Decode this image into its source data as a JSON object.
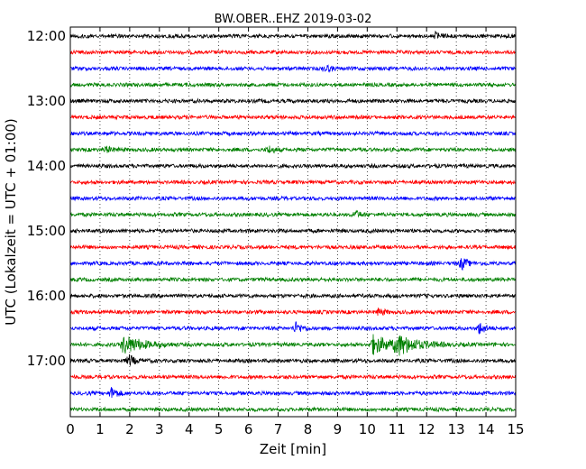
{
  "chart_data": {
    "type": "line",
    "title": "BW.OBER..EHZ 2019-03-02",
    "xlabel": "Zeit  [min]",
    "ylabel": "UTC (Lokalzeit = UTC + 01:00)",
    "xlim": [
      0,
      15
    ],
    "xticks": [
      "0",
      "1",
      "2",
      "3",
      "4",
      "5",
      "6",
      "7",
      "8",
      "9",
      "10",
      "11",
      "12",
      "13",
      "14",
      "15"
    ],
    "ytick_labels": [
      "12:00",
      "13:00",
      "14:00",
      "15:00",
      "16:00",
      "17:00"
    ],
    "grid": {
      "x_dotted": true,
      "y": false
    },
    "color_cycle": [
      "#000000",
      "#ff0000",
      "#0000ff",
      "#008000"
    ],
    "traces": [
      {
        "start": "12:00",
        "color": "#000000"
      },
      {
        "start": "12:15",
        "color": "#ff0000"
      },
      {
        "start": "12:30",
        "color": "#0000ff"
      },
      {
        "start": "12:45",
        "color": "#008000"
      },
      {
        "start": "13:00",
        "color": "#000000"
      },
      {
        "start": "13:15",
        "color": "#ff0000"
      },
      {
        "start": "13:30",
        "color": "#0000ff"
      },
      {
        "start": "13:45",
        "color": "#008000"
      },
      {
        "start": "14:00",
        "color": "#000000"
      },
      {
        "start": "14:15",
        "color": "#ff0000"
      },
      {
        "start": "14:30",
        "color": "#0000ff"
      },
      {
        "start": "14:45",
        "color": "#008000"
      },
      {
        "start": "15:00",
        "color": "#000000"
      },
      {
        "start": "15:15",
        "color": "#ff0000"
      },
      {
        "start": "15:30",
        "color": "#0000ff"
      },
      {
        "start": "15:45",
        "color": "#008000"
      },
      {
        "start": "16:00",
        "color": "#000000"
      },
      {
        "start": "16:15",
        "color": "#ff0000"
      },
      {
        "start": "16:30",
        "color": "#0000ff"
      },
      {
        "start": "16:45",
        "color": "#008000"
      },
      {
        "start": "17:00",
        "color": "#000000"
      },
      {
        "start": "17:15",
        "color": "#ff0000"
      },
      {
        "start": "17:30",
        "color": "#0000ff"
      },
      {
        "start": "17:45",
        "color": "#008000"
      }
    ],
    "events": [
      {
        "trace": "16:45",
        "minute": 1.8,
        "amplitude": "high"
      },
      {
        "trace": "16:45",
        "minute": 10.2,
        "amplitude": "high"
      },
      {
        "trace": "16:45",
        "minute": 11.0,
        "amplitude": "high"
      },
      {
        "trace": "17:00",
        "minute": 2.0,
        "amplitude": "medium"
      },
      {
        "trace": "17:30",
        "minute": 1.4,
        "amplitude": "medium"
      },
      {
        "trace": "16:30",
        "minute": 7.6,
        "amplitude": "medium"
      },
      {
        "trace": "16:30",
        "minute": 13.8,
        "amplitude": "medium"
      },
      {
        "trace": "15:30",
        "minute": 13.2,
        "amplitude": "medium"
      },
      {
        "trace": "16:15",
        "minute": 10.4,
        "amplitude": "low"
      },
      {
        "trace": "13:45",
        "minute": 1.2,
        "amplitude": "low"
      },
      {
        "trace": "13:45",
        "minute": 6.7,
        "amplitude": "low"
      },
      {
        "trace": "12:00",
        "minute": 12.3,
        "amplitude": "low"
      },
      {
        "trace": "12:30",
        "minute": 8.6,
        "amplitude": "low"
      },
      {
        "trace": "14:45",
        "minute": 9.6,
        "amplitude": "low"
      }
    ]
  }
}
